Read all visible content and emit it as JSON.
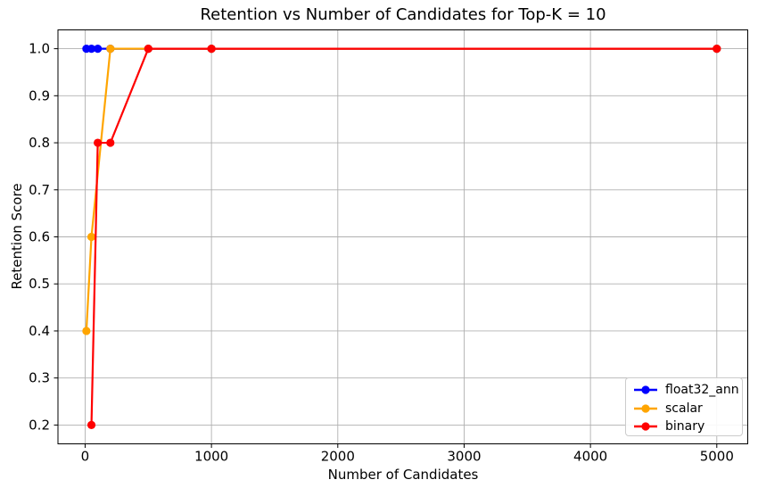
{
  "chart_data": {
    "type": "line",
    "title": "Retention vs Number of Candidates for Top-K = 10",
    "xlabel": "Number of Candidates",
    "ylabel": "Retention Score",
    "xlim": [
      -215,
      5245
    ],
    "ylim": [
      0.16,
      1.04
    ],
    "grid": true,
    "legend_position": "lower right",
    "x_ticks": [
      {
        "value": 0,
        "label": "0"
      },
      {
        "value": 1000,
        "label": "1000"
      },
      {
        "value": 2000,
        "label": "2000"
      },
      {
        "value": 3000,
        "label": "3000"
      },
      {
        "value": 4000,
        "label": "4000"
      },
      {
        "value": 5000,
        "label": "5000"
      }
    ],
    "y_ticks": [
      {
        "value": 0.2,
        "label": "0.2"
      },
      {
        "value": 0.3,
        "label": "0.3"
      },
      {
        "value": 0.4,
        "label": "0.4"
      },
      {
        "value": 0.5,
        "label": "0.5"
      },
      {
        "value": 0.6,
        "label": "0.6"
      },
      {
        "value": 0.7,
        "label": "0.7"
      },
      {
        "value": 0.8,
        "label": "0.8"
      },
      {
        "value": 0.9,
        "label": "0.9"
      },
      {
        "value": 1.0,
        "label": "1.0"
      }
    ],
    "series": [
      {
        "name": "float32_ann",
        "color": "#0000ff",
        "x": [
          10,
          50,
          100,
          200,
          500,
          1000,
          5000
        ],
        "y": [
          1.0,
          1.0,
          1.0,
          1.0,
          1.0,
          1.0,
          1.0
        ]
      },
      {
        "name": "scalar",
        "color": "#ffa500",
        "x": [
          10,
          50,
          200,
          500,
          1000,
          5000
        ],
        "y": [
          0.4,
          0.6,
          1.0,
          1.0,
          1.0,
          1.0
        ]
      },
      {
        "name": "binary",
        "color": "#ff0000",
        "x": [
          50,
          100,
          200,
          500,
          1000,
          5000
        ],
        "y": [
          0.2,
          0.8,
          0.8,
          1.0,
          1.0,
          1.0
        ]
      }
    ],
    "colors": {
      "background": "#ffffff",
      "grid": "#b0b0b0",
      "spine": "#000000",
      "text": "#000000",
      "legend_border": "#cccccc"
    }
  }
}
